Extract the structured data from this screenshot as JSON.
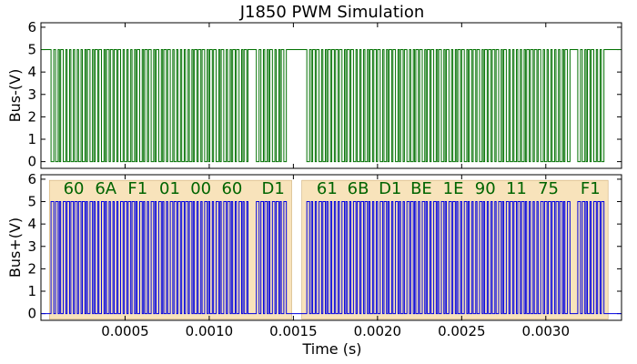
{
  "chart_data": {
    "type": "line",
    "title": "J1850 PWM Simulation",
    "xlabel": "Time (s)",
    "x_ticks": [
      0.0005,
      0.001,
      0.0015,
      0.002,
      0.0025,
      0.003
    ],
    "x_tick_labels": [
      "0.0005",
      "0.0010",
      "0.0015",
      "0.0020",
      "0.0025",
      "0.0030"
    ],
    "xlim": [
      0.0,
      0.00345
    ],
    "grid": false,
    "panels": [
      {
        "name": "bus-minus",
        "ylabel": "Bus-(V)",
        "ylim": [
          -0.3,
          6.2
        ],
        "y_ticks": [
          0,
          1,
          2,
          3,
          4,
          5,
          6
        ],
        "y_tick_labels": [
          "0",
          "1",
          "2",
          "3",
          "4",
          "5",
          "6"
        ],
        "series": [
          {
            "color": "#007000",
            "idle_level": 5,
            "active_level": 0,
            "frames": [
              {
                "start": 6e-05,
                "end": 0.00125
              },
              {
                "start": 0.00128,
                "end": 0.00148
              },
              {
                "start": 0.00158,
                "end": 0.00316
              },
              {
                "start": 0.00319,
                "end": 0.00336
              }
            ]
          }
        ]
      },
      {
        "name": "bus-plus",
        "ylabel": "Bus+(V)",
        "ylim": [
          -0.3,
          6.2
        ],
        "y_ticks": [
          0,
          1,
          2,
          3,
          4,
          5,
          6
        ],
        "y_tick_labels": [
          "0",
          "1",
          "2",
          "3",
          "4",
          "5",
          "6"
        ],
        "series": [
          {
            "color": "#0000e0",
            "idle_level": 0,
            "active_level": 5,
            "frames": [
              {
                "start": 6e-05,
                "end": 0.00125
              },
              {
                "start": 0.00128,
                "end": 0.00148
              },
              {
                "start": 0.00158,
                "end": 0.00316
              },
              {
                "start": 0.00319,
                "end": 0.00336
              }
            ]
          }
        ],
        "message_boxes": [
          {
            "start": 5e-05,
            "end": 0.00149,
            "fill": "#f7dfb0"
          },
          {
            "start": 0.00155,
            "end": 0.00337,
            "fill": "#f7dfb0"
          }
        ],
        "byte_labels": [
          {
            "x": 0.000195,
            "text": "60"
          },
          {
            "x": 0.000385,
            "text": "6A"
          },
          {
            "x": 0.000575,
            "text": "F1"
          },
          {
            "x": 0.000765,
            "text": "01"
          },
          {
            "x": 0.00095,
            "text": "00"
          },
          {
            "x": 0.001135,
            "text": "60"
          },
          {
            "x": 0.00138,
            "text": "D1"
          },
          {
            "x": 0.0017,
            "text": "61"
          },
          {
            "x": 0.001885,
            "text": "6B"
          },
          {
            "x": 0.002075,
            "text": "D1"
          },
          {
            "x": 0.00226,
            "text": "BE"
          },
          {
            "x": 0.00245,
            "text": "1E"
          },
          {
            "x": 0.00264,
            "text": "90"
          },
          {
            "x": 0.002825,
            "text": "11"
          },
          {
            "x": 0.003015,
            "text": "75"
          },
          {
            "x": 0.003265,
            "text": "F1"
          }
        ]
      }
    ]
  }
}
